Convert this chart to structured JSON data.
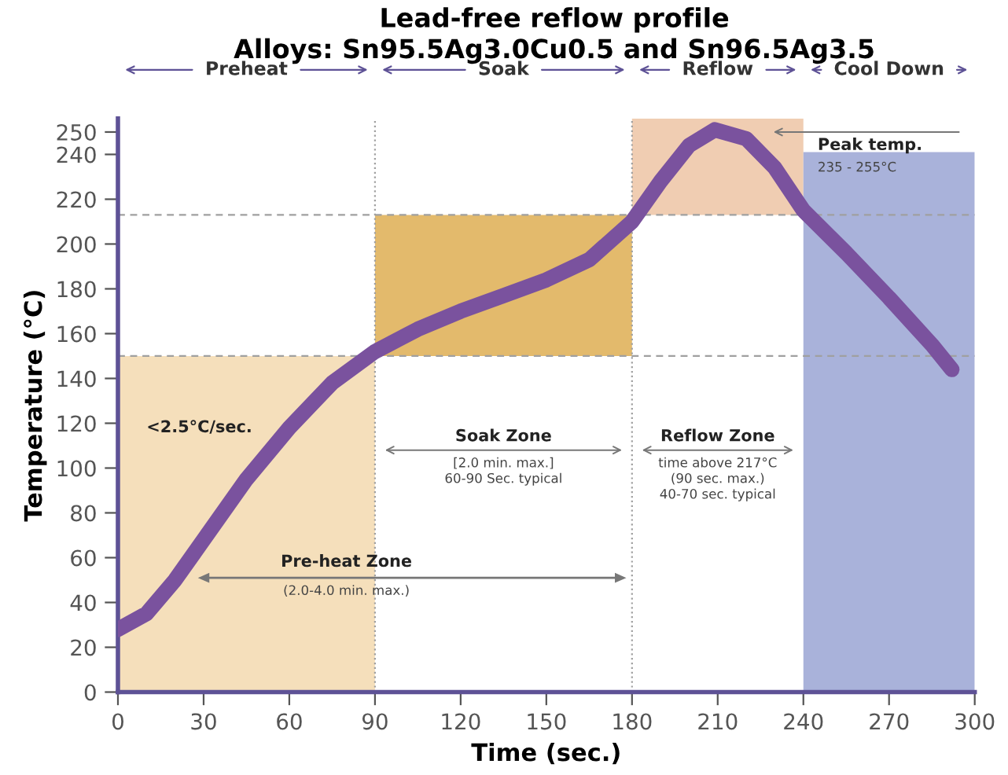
{
  "chart_data": {
    "type": "line",
    "title": "Lead-free reflow profile",
    "subtitle": "Alloys: Sn95.5Ag3.0Cu0.5 and Sn96.5Ag3.5",
    "xlabel": "Time (sec.)",
    "ylabel": "Temperature (°C)",
    "xlim": [
      0,
      300
    ],
    "ylim": [
      0,
      256
    ],
    "xticks": [
      0,
      30,
      60,
      90,
      120,
      150,
      180,
      210,
      240,
      270,
      300
    ],
    "yticks": [
      0,
      20,
      40,
      60,
      80,
      100,
      120,
      140,
      160,
      180,
      200,
      220,
      240,
      250
    ],
    "series": [
      {
        "type": "bar",
        "x": [
          45,
          135,
          210,
          270
        ],
        "base": [
          0,
          150,
          213,
          0
        ],
        "values": [
          150,
          63,
          43,
          241
        ],
        "colors": [
          "#f5dfbb",
          "#e3ba6c",
          "#f0cdb2",
          "#a9b2da"
        ]
      },
      {
        "color": "#7a529e",
        "x": [
          0,
          10,
          20,
          30,
          45,
          60,
          75,
          90,
          105,
          120,
          135,
          150,
          165,
          180,
          190,
          200,
          209,
          220,
          230,
          240,
          255,
          270,
          285,
          292
        ],
        "values": [
          28,
          35,
          50,
          68,
          95,
          118,
          138,
          152,
          162,
          170,
          177,
          184,
          193,
          210,
          228,
          244,
          251,
          247,
          234,
          215,
          196,
          176,
          155,
          144
        ]
      }
    ],
    "ref_lines": [
      {
        "axis": "y",
        "value": 150,
        "color": "#a0a0a0",
        "line_style": "dashed"
      },
      {
        "axis": "y",
        "value": 213,
        "color": "#a0a0a0",
        "line_style": "dashed"
      },
      {
        "axis": "x",
        "value": 90,
        "color": "#a0a0a0",
        "line_style": "dotted"
      },
      {
        "axis": "x",
        "value": 180,
        "color": "#a0a0a0",
        "line_style": "dotted"
      }
    ],
    "annotations": [
      "Preheat",
      "Soak",
      "Reflow",
      "Cool Down",
      "Peak temp.",
      "235 - 255°C",
      "<2.5°C/sec.",
      "Soak Zone",
      "[2.0 min. max.]",
      "60-90 Sec. typical",
      "Reflow Zone",
      "time above 217°C",
      "(90 sec. max.)",
      "40-70 sec. typical",
      "Pre-heat Zone",
      "(2.0-4.0 min. max.)"
    ]
  }
}
